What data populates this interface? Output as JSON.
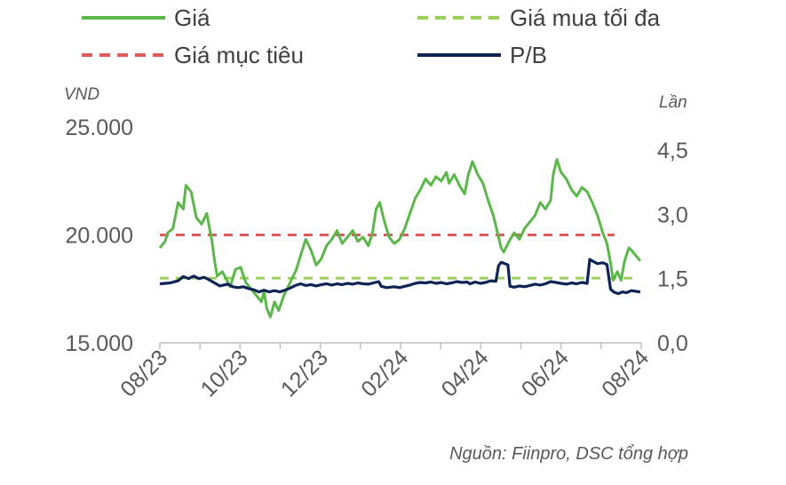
{
  "chart_data": {
    "type": "line",
    "title": "",
    "source": "Nguồn: Fiinpro, DSC tổng hợp",
    "y_left": {
      "unit": "VND",
      "range": [
        15000,
        25000
      ],
      "ticks": [
        "15.000",
        "20.000",
        "25.000"
      ]
    },
    "y_right": {
      "unit": "Lần",
      "range": [
        0,
        5
      ],
      "ticks": [
        "0,0",
        "1,5",
        "3,0",
        "4,5"
      ]
    },
    "x_ticks": [
      "08/23",
      "10/23",
      "12/23",
      "02/24",
      "04/24",
      "06/24",
      "08/24"
    ],
    "x_range_months": [
      "2023-08",
      "2024-08"
    ],
    "legend": {
      "placement": "top",
      "items": [
        {
          "key": "gia",
          "label": "Giá",
          "style": "solid",
          "color": "#5cb74b"
        },
        {
          "key": "gia_mua_toi_da",
          "label": "Giá mua tối đa",
          "style": "dashed",
          "color": "#9bd15a"
        },
        {
          "key": "gia_muc_tieu",
          "label": "Giá mục tiêu",
          "style": "dashed",
          "color": "#e05a5a"
        },
        {
          "key": "pb",
          "label": "P/B",
          "style": "solid",
          "color": "#0d2455"
        }
      ]
    },
    "reference_lines": {
      "gia_muc_tieu": 20000,
      "gia_mua_toi_da": 18000
    },
    "series": [
      {
        "name": "Giá",
        "axis": "left",
        "points": [
          [
            0.0,
            19400
          ],
          [
            0.1,
            19700
          ],
          [
            0.15,
            20100
          ],
          [
            0.25,
            20300
          ],
          [
            0.35,
            21500
          ],
          [
            0.45,
            21200
          ],
          [
            0.5,
            22300
          ],
          [
            0.6,
            22000
          ],
          [
            0.7,
            20800
          ],
          [
            0.8,
            20500
          ],
          [
            0.9,
            21000
          ],
          [
            1.0,
            19700
          ],
          [
            1.05,
            18800
          ],
          [
            1.1,
            18100
          ],
          [
            1.2,
            18300
          ],
          [
            1.35,
            17600
          ],
          [
            1.45,
            18400
          ],
          [
            1.55,
            18500
          ],
          [
            1.65,
            17800
          ],
          [
            1.75,
            17500
          ],
          [
            1.85,
            17200
          ],
          [
            1.95,
            16900
          ],
          [
            2.0,
            17400
          ],
          [
            2.05,
            16600
          ],
          [
            2.12,
            16200
          ],
          [
            2.2,
            16900
          ],
          [
            2.28,
            16500
          ],
          [
            2.38,
            17200
          ],
          [
            2.5,
            17800
          ],
          [
            2.62,
            18400
          ],
          [
            2.72,
            19200
          ],
          [
            2.8,
            19800
          ],
          [
            2.9,
            19300
          ],
          [
            3.0,
            18600
          ],
          [
            3.1,
            18900
          ],
          [
            3.2,
            19500
          ],
          [
            3.3,
            19800
          ],
          [
            3.4,
            20200
          ],
          [
            3.5,
            19600
          ],
          [
            3.6,
            19900
          ],
          [
            3.7,
            20200
          ],
          [
            3.8,
            19700
          ],
          [
            3.9,
            19900
          ],
          [
            4.0,
            19500
          ],
          [
            4.08,
            20100
          ],
          [
            4.15,
            21200
          ],
          [
            4.22,
            21500
          ],
          [
            4.3,
            20700
          ],
          [
            4.4,
            19900
          ],
          [
            4.5,
            19600
          ],
          [
            4.6,
            19800
          ],
          [
            4.7,
            20300
          ],
          [
            4.8,
            21000
          ],
          [
            4.9,
            21700
          ],
          [
            5.0,
            22100
          ],
          [
            5.1,
            22600
          ],
          [
            5.2,
            22300
          ],
          [
            5.3,
            22700
          ],
          [
            5.4,
            22500
          ],
          [
            5.5,
            22900
          ],
          [
            5.55,
            22400
          ],
          [
            5.65,
            22800
          ],
          [
            5.75,
            22300
          ],
          [
            5.85,
            21900
          ],
          [
            5.92,
            22800
          ],
          [
            6.0,
            23400
          ],
          [
            6.1,
            22800
          ],
          [
            6.2,
            22400
          ],
          [
            6.3,
            21600
          ],
          [
            6.4,
            20900
          ],
          [
            6.48,
            20100
          ],
          [
            6.55,
            19400
          ],
          [
            6.6,
            19200
          ],
          [
            6.7,
            19700
          ],
          [
            6.8,
            20100
          ],
          [
            6.9,
            19800
          ],
          [
            7.0,
            20300
          ],
          [
            7.1,
            20600
          ],
          [
            7.2,
            20900
          ],
          [
            7.3,
            21500
          ],
          [
            7.4,
            21200
          ],
          [
            7.5,
            21600
          ],
          [
            7.55,
            22800
          ],
          [
            7.62,
            23500
          ],
          [
            7.7,
            22900
          ],
          [
            7.8,
            22600
          ],
          [
            7.9,
            22100
          ],
          [
            8.0,
            21800
          ],
          [
            8.1,
            22200
          ],
          [
            8.2,
            22000
          ],
          [
            8.3,
            21500
          ],
          [
            8.4,
            20900
          ],
          [
            8.5,
            20100
          ],
          [
            8.58,
            19600
          ],
          [
            8.65,
            18700
          ],
          [
            8.7,
            17900
          ],
          [
            8.78,
            18300
          ],
          [
            8.85,
            17900
          ],
          [
            8.92,
            18800
          ],
          [
            9.0,
            19400
          ],
          [
            9.05,
            19300
          ],
          [
            9.15,
            19000
          ],
          [
            9.22,
            18800
          ]
        ]
      },
      {
        "name": "P/B",
        "axis": "right",
        "points": [
          [
            0.0,
            1.38
          ],
          [
            0.2,
            1.4
          ],
          [
            0.35,
            1.45
          ],
          [
            0.45,
            1.55
          ],
          [
            0.55,
            1.5
          ],
          [
            0.65,
            1.56
          ],
          [
            0.75,
            1.5
          ],
          [
            0.85,
            1.53
          ],
          [
            0.95,
            1.47
          ],
          [
            1.05,
            1.4
          ],
          [
            1.15,
            1.33
          ],
          [
            1.3,
            1.37
          ],
          [
            1.4,
            1.31
          ],
          [
            1.5,
            1.29
          ],
          [
            1.6,
            1.31
          ],
          [
            1.7,
            1.27
          ],
          [
            1.8,
            1.24
          ],
          [
            1.9,
            1.19
          ],
          [
            2.0,
            1.23
          ],
          [
            2.1,
            1.19
          ],
          [
            2.2,
            1.22
          ],
          [
            2.3,
            1.19
          ],
          [
            2.4,
            1.23
          ],
          [
            2.5,
            1.28
          ],
          [
            2.6,
            1.34
          ],
          [
            2.7,
            1.38
          ],
          [
            2.8,
            1.34
          ],
          [
            2.9,
            1.36
          ],
          [
            3.0,
            1.33
          ],
          [
            3.1,
            1.36
          ],
          [
            3.2,
            1.38
          ],
          [
            3.3,
            1.35
          ],
          [
            3.4,
            1.38
          ],
          [
            3.5,
            1.36
          ],
          [
            3.6,
            1.39
          ],
          [
            3.7,
            1.37
          ],
          [
            3.8,
            1.4
          ],
          [
            3.9,
            1.38
          ],
          [
            4.0,
            1.37
          ],
          [
            4.1,
            1.4
          ],
          [
            4.2,
            1.43
          ],
          [
            4.25,
            1.32
          ],
          [
            4.35,
            1.29
          ],
          [
            4.5,
            1.31
          ],
          [
            4.6,
            1.29
          ],
          [
            4.7,
            1.32
          ],
          [
            4.8,
            1.35
          ],
          [
            4.9,
            1.39
          ],
          [
            5.0,
            1.41
          ],
          [
            5.1,
            1.4
          ],
          [
            5.2,
            1.42
          ],
          [
            5.3,
            1.39
          ],
          [
            5.4,
            1.41
          ],
          [
            5.5,
            1.38
          ],
          [
            5.6,
            1.4
          ],
          [
            5.7,
            1.43
          ],
          [
            5.8,
            1.41
          ],
          [
            5.9,
            1.42
          ],
          [
            5.95,
            1.38
          ],
          [
            6.05,
            1.42
          ],
          [
            6.15,
            1.39
          ],
          [
            6.25,
            1.41
          ],
          [
            6.35,
            1.45
          ],
          [
            6.45,
            1.44
          ],
          [
            6.5,
            1.8
          ],
          [
            6.55,
            1.88
          ],
          [
            6.62,
            1.85
          ],
          [
            6.68,
            1.82
          ],
          [
            6.72,
            1.32
          ],
          [
            6.8,
            1.3
          ],
          [
            6.9,
            1.33
          ],
          [
            7.0,
            1.31
          ],
          [
            7.1,
            1.34
          ],
          [
            7.2,
            1.37
          ],
          [
            7.3,
            1.35
          ],
          [
            7.4,
            1.38
          ],
          [
            7.5,
            1.43
          ],
          [
            7.6,
            1.41
          ],
          [
            7.7,
            1.39
          ],
          [
            7.8,
            1.37
          ],
          [
            7.9,
            1.4
          ],
          [
            8.0,
            1.38
          ],
          [
            8.1,
            1.41
          ],
          [
            8.2,
            1.39
          ],
          [
            8.25,
            1.95
          ],
          [
            8.32,
            1.9
          ],
          [
            8.4,
            1.85
          ],
          [
            8.5,
            1.87
          ],
          [
            8.58,
            1.83
          ],
          [
            8.65,
            1.25
          ],
          [
            8.72,
            1.18
          ],
          [
            8.8,
            1.15
          ],
          [
            8.88,
            1.19
          ],
          [
            8.95,
            1.17
          ],
          [
            9.05,
            1.22
          ],
          [
            9.15,
            1.2
          ],
          [
            9.22,
            1.19
          ]
        ]
      }
    ]
  }
}
